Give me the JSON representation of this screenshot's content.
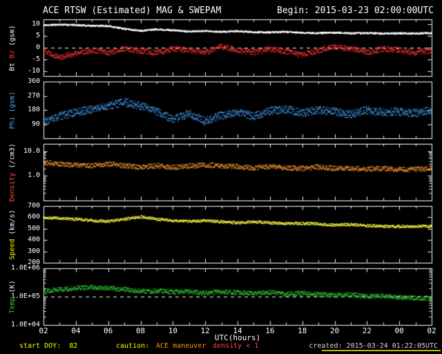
{
  "header": {
    "title": "ACE RTSW (Estimated) MAG & SWEPAM",
    "begin": "Begin: 2015-03-23 02:00:00UTC"
  },
  "footer": {
    "start_doy": "start DOY:  82",
    "caution_label": "caution:",
    "caution_maneuver": "ACE maneuver",
    "caution_density": "density < 1",
    "created": "created: 2015-03-24 01:22:05UTC"
  },
  "chart_data": {
    "type": "scatter",
    "title": "ACE RTSW (Estimated) MAG & SWEPAM",
    "subtitle": "Begin: 2015-03-23 02:00:00UTC",
    "background": "#000000",
    "grid": false,
    "x": {
      "label": "UTC(hours)",
      "domain": [
        2,
        26
      ],
      "tick_hours": [
        2,
        4,
        6,
        8,
        10,
        12,
        14,
        16,
        18,
        20,
        22,
        24,
        26
      ],
      "tick_labels": [
        "02",
        "04",
        "06",
        "08",
        "10",
        "12",
        "14",
        "16",
        "18",
        "20",
        "22",
        "00",
        "02"
      ]
    },
    "panels": [
      {
        "id": "bt-bz",
        "scale": "linear",
        "domain": [
          -12,
          12
        ],
        "ticks": [
          {
            "v": 10,
            "label": "10"
          },
          {
            "v": 5,
            "label": "5"
          },
          {
            "v": 0,
            "label": "0"
          },
          {
            "v": -5,
            "label": "-5"
          },
          {
            "v": -10,
            "label": "-10"
          }
        ],
        "dashed_at": 0,
        "axis_label_parts": [
          {
            "text": "Bt ",
            "color": "#ffffff"
          },
          {
            "text": "Bz ",
            "color": "#ff3333"
          },
          {
            "text": "(gsm)",
            "color": "#ffffff"
          }
        ],
        "series": [
          {
            "name": "Bt",
            "color": "#ffffff",
            "seed": 11,
            "noise": 0.35,
            "line": true,
            "anchors": [
              9.5,
              9.8,
              9.6,
              9.3,
              9.2,
              8.0,
              7.2,
              7.8,
              7.4,
              6.9,
              7.1,
              6.7,
              7.0,
              6.6,
              6.5,
              6.7,
              6.3,
              6.2,
              6.4,
              6.1,
              6.2,
              6.0,
              6.1,
              6.0,
              6.2
            ]
          },
          {
            "name": "Bz",
            "color": "#ff3333",
            "seed": 22,
            "noise": 1.2,
            "line": false,
            "anchors": [
              -1,
              -4,
              -2.5,
              -1,
              -2,
              -0.5,
              -1.5,
              -2,
              -0.5,
              -1,
              -2,
              0.5,
              -1,
              -2,
              -0.5,
              -1.5,
              -3,
              -1,
              0.5,
              -0.5,
              -2,
              -0.5,
              -1,
              -2,
              -1
            ]
          }
        ]
      },
      {
        "id": "phi",
        "scale": "linear",
        "domain": [
          0,
          360
        ],
        "ticks": [
          {
            "v": 360,
            "label": "360"
          },
          {
            "v": 270,
            "label": "270"
          },
          {
            "v": 180,
            "label": "180"
          },
          {
            "v": 90,
            "label": "90"
          }
        ],
        "dashed_at": null,
        "axis_label_parts": [
          {
            "text": "Phi ",
            "color": "#4aa8ff"
          },
          {
            "text": "(gsm)",
            "color": "#4aa8ff"
          }
        ],
        "series": [
          {
            "name": "Phi",
            "color": "#4aa8ff",
            "seed": 33,
            "noise": 25,
            "line": false,
            "anchors": [
              100,
              140,
              165,
              185,
              205,
              230,
              205,
              170,
              120,
              155,
              110,
              145,
              165,
              140,
              175,
              185,
              160,
              180,
              170,
              150,
              180,
              165,
              170,
              160,
              180
            ]
          }
        ]
      },
      {
        "id": "density",
        "scale": "log",
        "domain": [
          0.1,
          20
        ],
        "ticks": [
          {
            "v": 10,
            "label": "10.0"
          },
          {
            "v": 1,
            "label": "1.0"
          }
        ],
        "dashed_at": null,
        "axis_label_parts": [
          {
            "text": "Density ",
            "color": "#ff5533"
          },
          {
            "text": "(/cm3)",
            "color": "#ffffff"
          }
        ],
        "series": [
          {
            "name": "Density",
            "color": "#ff9933",
            "seed": 44,
            "noise": 0.1,
            "line": false,
            "anchors": [
              3.5,
              3.0,
              2.8,
              2.6,
              3.0,
              2.6,
              2.2,
              2.6,
              2.2,
              2.5,
              2.8,
              2.5,
              2.4,
              2.1,
              2.4,
              2.1,
              2.0,
              2.3,
              2.0,
              2.0,
              1.9,
              2.0,
              1.8,
              1.9,
              2.0
            ]
          }
        ]
      },
      {
        "id": "speed",
        "scale": "linear",
        "domain": [
          200,
          700
        ],
        "ticks": [
          {
            "v": 700,
            "label": "700"
          },
          {
            "v": 600,
            "label": "600"
          },
          {
            "v": 500,
            "label": "500"
          },
          {
            "v": 400,
            "label": "400"
          },
          {
            "v": 300,
            "label": "300"
          },
          {
            "v": 200,
            "label": "200"
          }
        ],
        "dashed_at": null,
        "axis_label_parts": [
          {
            "text": "Speed ",
            "color": "#ffff00"
          },
          {
            "text": "(km/s)",
            "color": "#ffffff"
          }
        ],
        "series": [
          {
            "name": "Speed",
            "color": "#ffff44",
            "seed": 55,
            "noise": 12,
            "line": false,
            "anchors": [
              600,
              592,
              585,
              572,
              565,
              585,
              605,
              585,
              572,
              565,
              572,
              562,
              552,
              562,
              552,
              545,
              548,
              542,
              532,
              537,
              528,
              522,
              518,
              522,
              521
            ]
          }
        ]
      },
      {
        "id": "temp",
        "scale": "log",
        "domain": [
          10000,
          1000000
        ],
        "ticks": [
          {
            "v": 1000000,
            "label": "1.0E+06"
          },
          {
            "v": 100000,
            "label": "1.0E+05"
          },
          {
            "v": 10000,
            "label": "1.0E+04"
          }
        ],
        "dashed_at": 100000,
        "axis_label_parts": [
          {
            "text": "Temp ",
            "color": "#33cc33"
          },
          {
            "text": "(K)",
            "color": "#ffffff"
          }
        ],
        "series": [
          {
            "name": "Temp",
            "color": "#33cc33",
            "seed": 66,
            "noise": 0.08,
            "line": false,
            "anchors": [
              150000,
              180000,
              200000,
              215000,
              200000,
              180000,
              155000,
              160000,
              145000,
              150000,
              135000,
              150000,
              140000,
              132000,
              140000,
              125000,
              130000,
              120000,
              112000,
              118000,
              100000,
              108000,
              92000,
              90000,
              86000
            ]
          }
        ]
      }
    ]
  }
}
